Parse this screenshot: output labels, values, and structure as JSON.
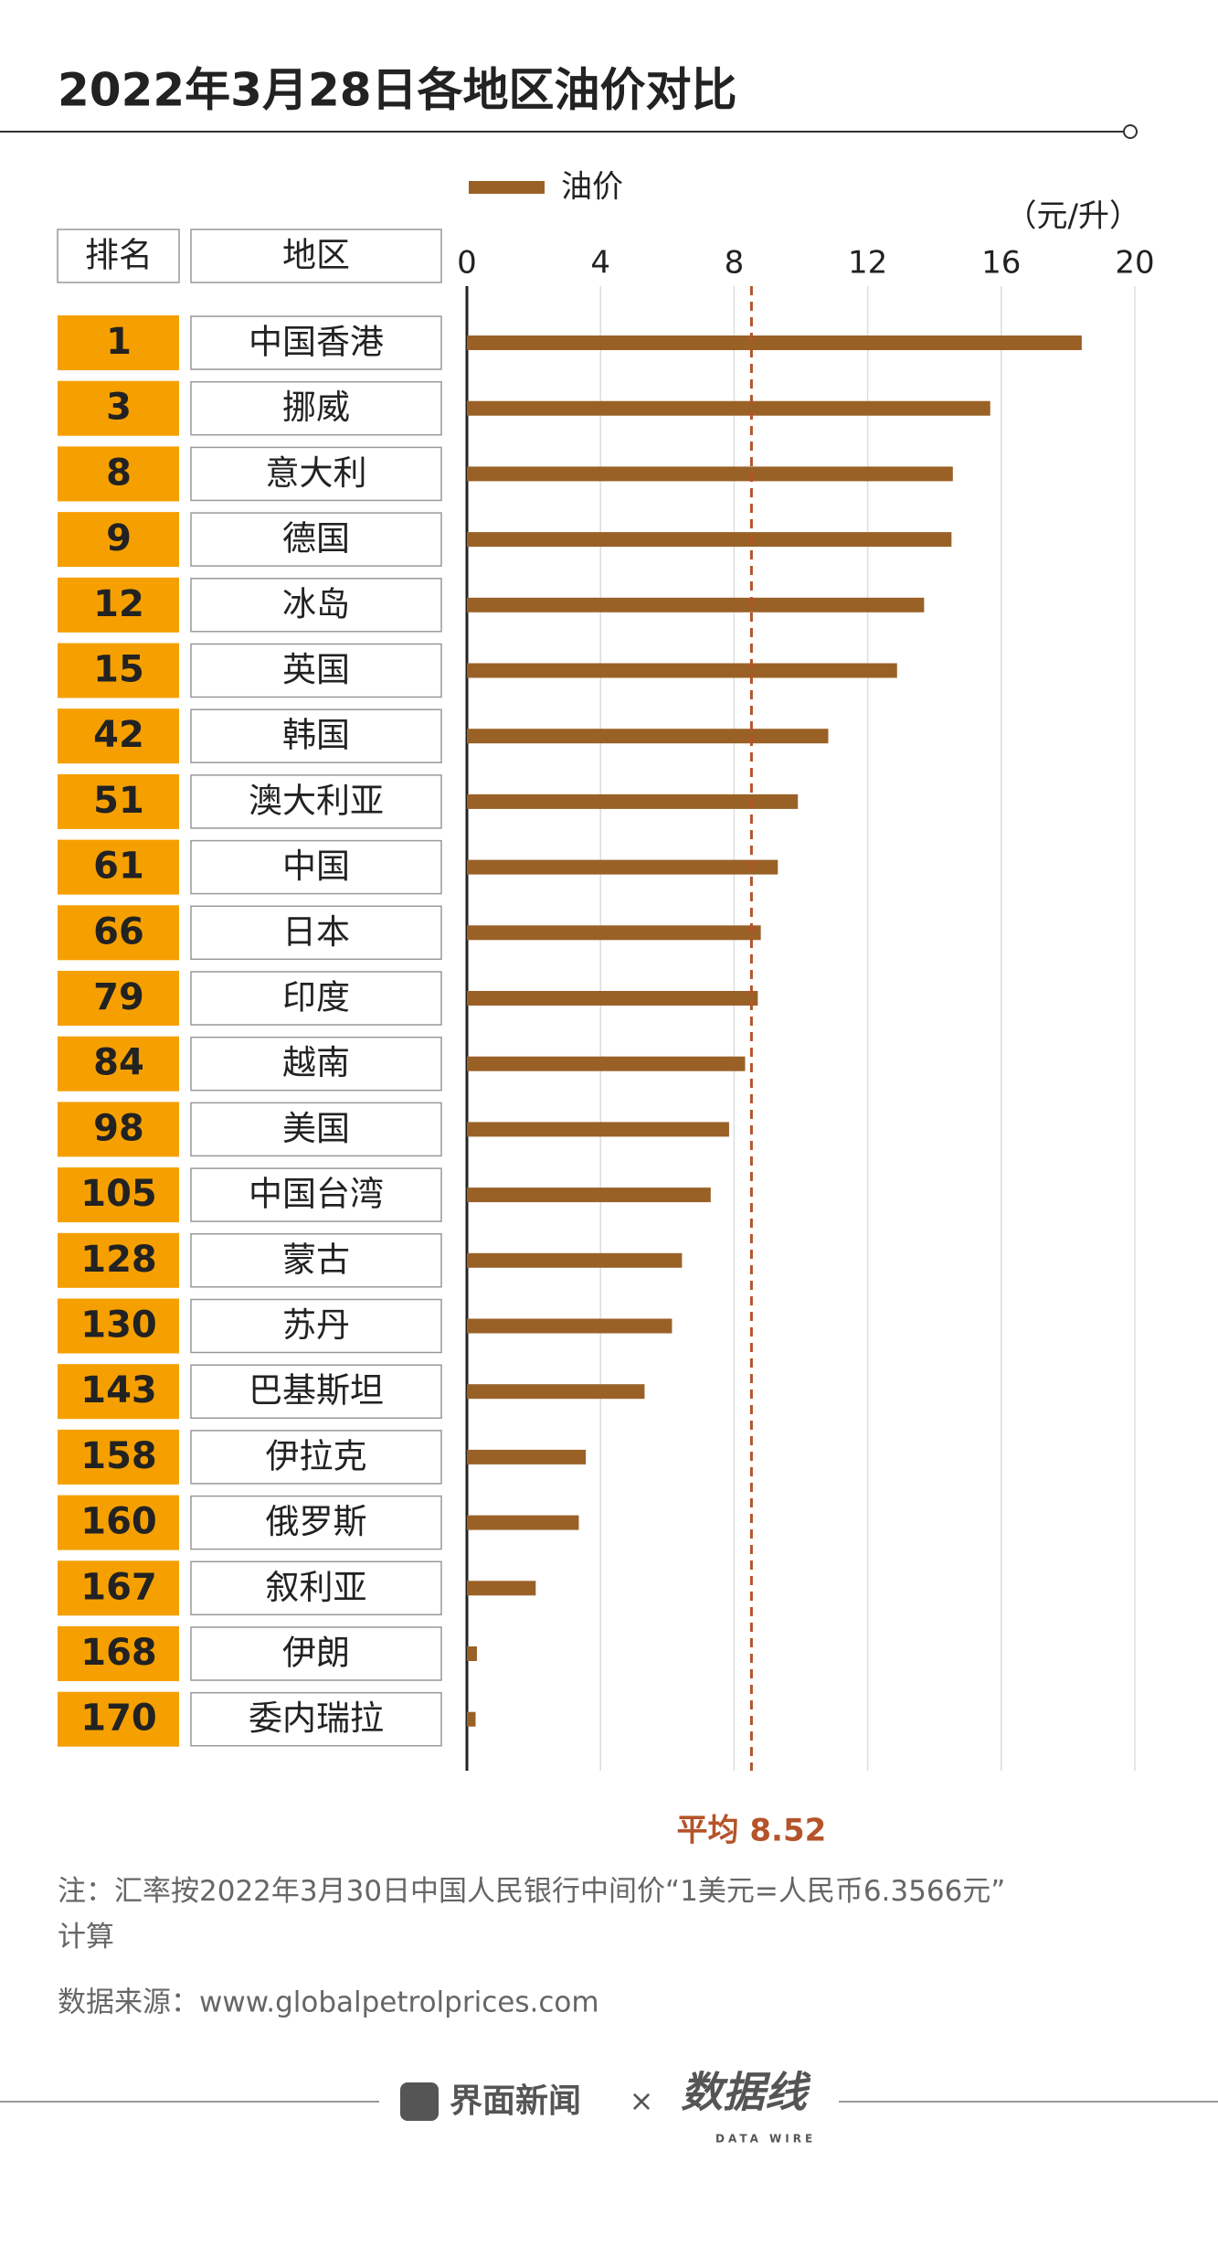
{
  "chart_data": {
    "type": "bar",
    "title": "2022年3月28日各地区油价对比",
    "unit": "（元/升）",
    "column_headers": [
      "排名",
      "地区"
    ],
    "ranks": [
      1,
      3,
      8,
      9,
      12,
      15,
      42,
      51,
      61,
      66,
      79,
      84,
      98,
      105,
      128,
      130,
      143,
      158,
      160,
      167,
      168,
      170
    ],
    "categories": [
      "中国香港",
      "挪威",
      "意大利",
      "德国",
      "冰岛",
      "英国",
      "韩国",
      "澳大利亚",
      "中国",
      "日本",
      "印度",
      "越南",
      "美国",
      "中国台湾",
      "蒙古",
      "苏丹",
      "巴基斯坦",
      "伊拉克",
      "俄罗斯",
      "叙利亚",
      "伊朗",
      "委内瑞拉"
    ],
    "series": [
      {
        "name": "油价",
        "color": "#9a6127",
        "values": [
          18.41,
          15.67,
          14.55,
          14.51,
          13.69,
          12.88,
          10.82,
          9.91,
          9.31,
          8.8,
          8.71,
          8.33,
          7.85,
          7.3,
          6.44,
          6.14,
          5.32,
          3.56,
          3.35,
          2.06,
          0.3,
          0.26
        ]
      }
    ],
    "xlim": [
      0,
      20
    ],
    "xticks": [
      0,
      4,
      8,
      12,
      16,
      20
    ],
    "grid": true,
    "rank_color": "#f5a000",
    "average": {
      "label": "平均 8.52",
      "value": 8.52,
      "color": "#b5532a"
    },
    "note": "注：汇率按2022年3月30日中国人民银行中间价“1美元=人民币6.3566元”计算",
    "source": "数据来源：www.globalpetrolprices.com"
  },
  "footer": {
    "brand": "界面新闻",
    "separator": "×",
    "partner": "数据线",
    "partner_sub": "DATA WIRE"
  }
}
